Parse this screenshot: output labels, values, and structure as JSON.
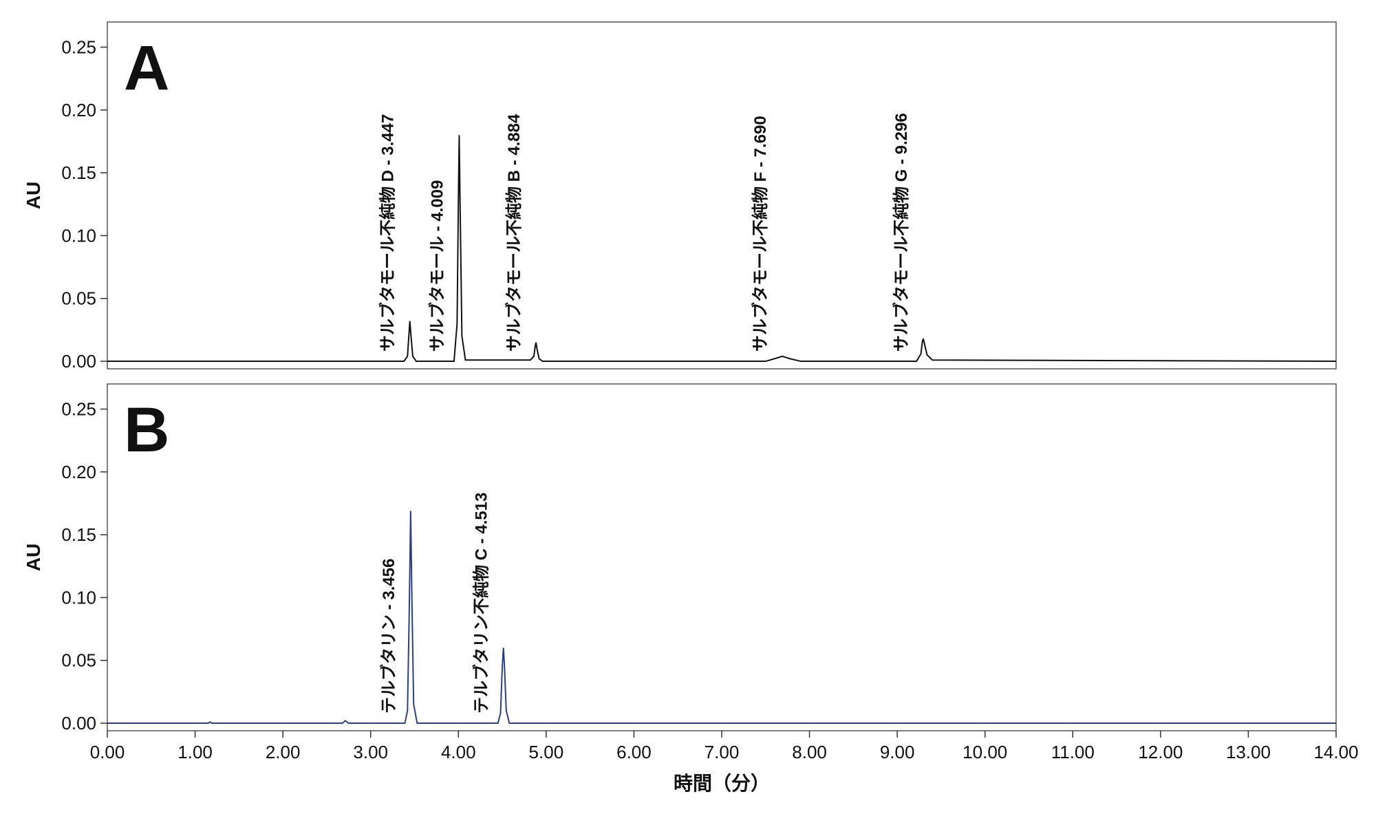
{
  "chart_data": [
    {
      "type": "line",
      "panel_label": "A",
      "y_label": "AU",
      "xlim": [
        0,
        14
      ],
      "ylim": [
        -0.006,
        0.27
      ],
      "yticks": [
        {
          "value": 0,
          "label": "0.00"
        },
        {
          "value": 0.05,
          "label": "0.05"
        },
        {
          "value": 0.1,
          "label": "0.10"
        },
        {
          "value": 0.15,
          "label": "0.15"
        },
        {
          "value": 0.2,
          "label": "0.20"
        },
        {
          "value": 0.25,
          "label": "0.25"
        }
      ],
      "x": [
        0,
        3.38,
        3.42,
        3.435,
        3.447,
        3.46,
        3.48,
        3.52,
        3.95,
        3.985,
        4.0,
        4.009,
        4.02,
        4.04,
        4.08,
        4.82,
        4.86,
        4.875,
        4.884,
        4.895,
        4.92,
        4.96,
        7.5,
        7.6,
        7.69,
        7.78,
        7.9,
        9.22,
        9.27,
        9.285,
        9.296,
        9.31,
        9.34,
        9.4,
        14
      ],
      "series": [
        {
          "color": "#111111",
          "values": [
            0,
            0,
            0.004,
            0.02,
            0.032,
            0.02,
            0.004,
            0,
            0,
            0.03,
            0.13,
            0.18,
            0.12,
            0.02,
            0.001,
            0.001,
            0.004,
            0.012,
            0.015,
            0.01,
            0.002,
            0,
            0,
            0.002,
            0.004,
            0.002,
            0,
            0,
            0.006,
            0.015,
            0.018,
            0.014,
            0.005,
            0.001,
            0
          ]
        }
      ],
      "annotations": [
        {
          "text": "サルブタモール不純物 D - 3.447",
          "x": 3.447
        },
        {
          "text": "サルブタモール - 4.009",
          "x": 4.009
        },
        {
          "text": "サルブタモール不純物 B - 4.884",
          "x": 4.884
        },
        {
          "text": "サルブタモール不純物 F - 7.690",
          "x": 7.69
        },
        {
          "text": "サルブタモール不純物 G - 9.296",
          "x": 9.296
        }
      ]
    },
    {
      "type": "line",
      "panel_label": "B",
      "y_label": "AU",
      "x_label": "時間（分）",
      "xlim": [
        0,
        14
      ],
      "ylim": [
        -0.006,
        0.27
      ],
      "xticks": [
        {
          "value": 0,
          "label": "0.00"
        },
        {
          "value": 1,
          "label": "1.00"
        },
        {
          "value": 2,
          "label": "2.00"
        },
        {
          "value": 3,
          "label": "3.00"
        },
        {
          "value": 4,
          "label": "4.00"
        },
        {
          "value": 5,
          "label": "5.00"
        },
        {
          "value": 6,
          "label": "6.00"
        },
        {
          "value": 7,
          "label": "7.00"
        },
        {
          "value": 8,
          "label": "8.00"
        },
        {
          "value": 9,
          "label": "9.00"
        },
        {
          "value": 10,
          "label": "10.00"
        },
        {
          "value": 11,
          "label": "11.00"
        },
        {
          "value": 12,
          "label": "12.00"
        },
        {
          "value": 13,
          "label": "13.00"
        },
        {
          "value": 14,
          "label": "14.00"
        }
      ],
      "yticks": [
        {
          "value": 0,
          "label": "0.00"
        },
        {
          "value": 0.05,
          "label": "0.05"
        },
        {
          "value": 0.1,
          "label": "0.10"
        },
        {
          "value": 0.15,
          "label": "0.15"
        },
        {
          "value": 0.2,
          "label": "0.20"
        },
        {
          "value": 0.25,
          "label": "0.25"
        }
      ],
      "x": [
        0,
        1.15,
        1.17,
        1.19,
        2.68,
        2.71,
        2.75,
        3.39,
        3.42,
        3.44,
        3.456,
        3.47,
        3.49,
        3.53,
        4.45,
        4.48,
        4.5,
        4.513,
        4.525,
        4.545,
        4.58,
        14
      ],
      "series": [
        {
          "color": "#2b3f86",
          "values": [
            0,
            0,
            0.001,
            0,
            0,
            0.002,
            0,
            0,
            0.01,
            0.09,
            0.169,
            0.1,
            0.015,
            0,
            0,
            0.008,
            0.045,
            0.06,
            0.045,
            0.01,
            0,
            0
          ]
        }
      ],
      "annotations": [
        {
          "text": "テルブタリン - 3.456",
          "x": 3.456
        },
        {
          "text": "テルブタリン不純物 C - 4.513",
          "x": 4.513
        }
      ]
    }
  ]
}
